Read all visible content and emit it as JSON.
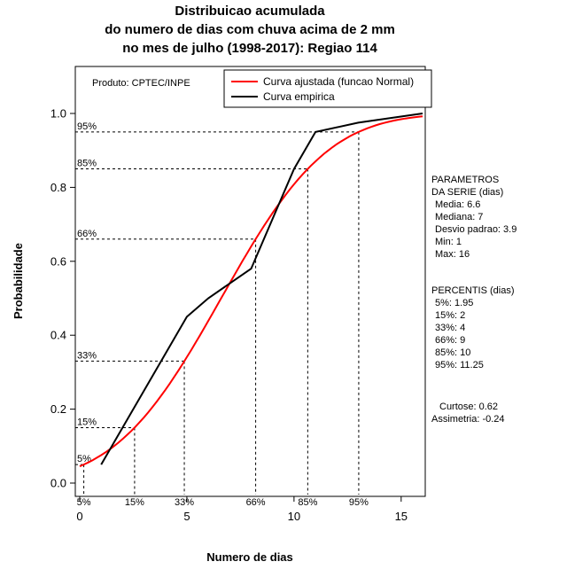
{
  "title": {
    "line1": "Distribuicao acumulada",
    "line2": "do numero de dias com chuva acima de 2 mm",
    "line3": "no mes de julho (1998-2017): Regiao 114"
  },
  "product_label": "Produto: CPTEC/INPE",
  "legend": {
    "fitted_label": "Curva ajustada (funcao Normal)",
    "empirical_label": "Curva empirica"
  },
  "axes": {
    "x_label": "Numero de dias",
    "y_label": "Probabilidade"
  },
  "stats": {
    "params_header1": "PARAMETROS",
    "params_header2": "DA SERIE (dias)",
    "params": [
      "Media: 6.6",
      "Mediana: 7",
      "Desvio padrao: 3.9",
      "Min: 1",
      "Max: 16"
    ],
    "percentis_header": "PERCENTIS (dias)",
    "percentis": [
      "5%: 1.95",
      "15%: 2",
      "33%: 4",
      "66%: 9",
      "85%: 10",
      "95%: 11.25"
    ],
    "curtose": "Curtose: 0.62",
    "assimetria": "Assimetria: -0.24"
  },
  "chart_data": {
    "type": "line",
    "title": "Distribuicao acumulada do numero de dias com chuva acima de 2 mm no mes de julho (1998-2017): Regiao 114",
    "xlabel": "Numero de dias",
    "ylabel": "Probabilidade",
    "xlim": [
      0,
      16
    ],
    "ylim": [
      0,
      1
    ],
    "x_ticks": [
      0,
      5,
      10,
      15
    ],
    "x_tick_labels": [
      "0",
      "5",
      "10",
      "15"
    ],
    "y_ticks": [
      0.0,
      0.2,
      0.4,
      0.6,
      0.8,
      1.0
    ],
    "y_tick_labels": [
      "0.0",
      "0.2",
      "0.4",
      "0.6",
      "0.8",
      "1.0"
    ],
    "grid": false,
    "legend_position": "top",
    "colors": {
      "fitted": "#ff0000",
      "empirical": "#000000"
    },
    "series": [
      {
        "name": "Curva ajustada (funcao Normal)",
        "color": "#ff0000",
        "model": "normal_cdf",
        "mean": 6.6,
        "sd": 3.9,
        "range": [
          0,
          16
        ]
      },
      {
        "name": "Curva empirica",
        "color": "#000000",
        "points": [
          [
            1,
            0.05
          ],
          [
            5,
            0.45
          ],
          [
            6,
            0.5
          ],
          [
            8,
            0.58
          ],
          [
            10,
            0.85
          ],
          [
            11,
            0.95
          ],
          [
            13,
            0.975
          ],
          [
            16,
            1.0
          ]
        ]
      }
    ],
    "percentile_guides": [
      {
        "label": "5%",
        "p": 0.05,
        "x": 0.19
      },
      {
        "label": "15%",
        "p": 0.15,
        "x": 2.56
      },
      {
        "label": "33%",
        "p": 0.33,
        "x": 4.88
      },
      {
        "label": "66%",
        "p": 0.66,
        "x": 8.21
      },
      {
        "label": "85%",
        "p": 0.85,
        "x": 10.64
      },
      {
        "label": "95%",
        "p": 0.95,
        "x": 13.02
      }
    ]
  }
}
